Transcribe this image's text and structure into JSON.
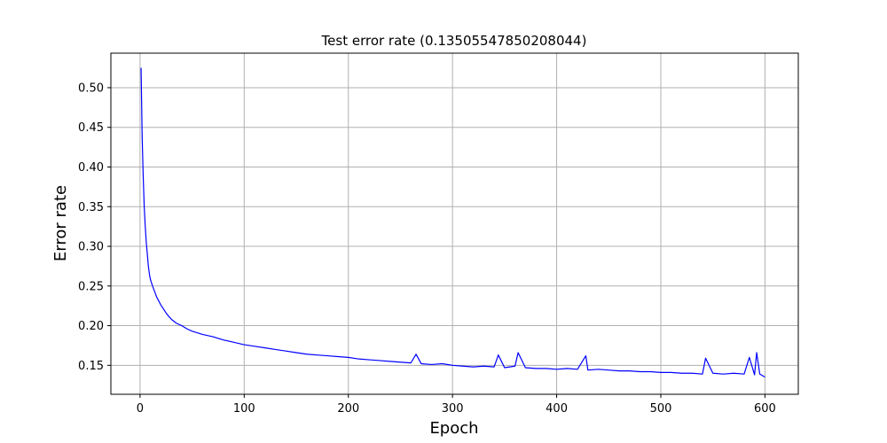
{
  "chart_data": {
    "type": "line",
    "title": "Test error rate (0.13505547850208044)",
    "xlabel": "Epoch",
    "ylabel": "Error rate",
    "xlim": [
      -28,
      632
    ],
    "ylim": [
      0.1135,
      0.5435
    ],
    "xticks": [
      0,
      100,
      200,
      300,
      400,
      500,
      600
    ],
    "yticks": [
      0.15,
      0.2,
      0.25,
      0.3,
      0.35,
      0.4,
      0.45,
      0.5
    ],
    "xtick_labels": [
      "0",
      "100",
      "200",
      "300",
      "400",
      "500",
      "600"
    ],
    "ytick_labels": [
      "0.15",
      "0.20",
      "0.25",
      "0.30",
      "0.35",
      "0.40",
      "0.45",
      "0.50"
    ],
    "grid": true,
    "series": [
      {
        "color": "#0000ff",
        "x": [
          1,
          2,
          3,
          4,
          5,
          6,
          7,
          8,
          9,
          10,
          12,
          14,
          16,
          18,
          20,
          22,
          25,
          28,
          31,
          35,
          40,
          45,
          50,
          60,
          70,
          80,
          90,
          100,
          110,
          120,
          130,
          140,
          150,
          160,
          170,
          180,
          190,
          200,
          210,
          220,
          230,
          240,
          250,
          260,
          265,
          270,
          280,
          290,
          300,
          310,
          320,
          330,
          340,
          344,
          350,
          360,
          363,
          370,
          380,
          390,
          400,
          410,
          420,
          428,
          430,
          440,
          450,
          460,
          470,
          480,
          490,
          500,
          510,
          520,
          530,
          540,
          543,
          550,
          560,
          570,
          580,
          585,
          590,
          592,
          595,
          600
        ],
        "values": [
          0.525,
          0.44,
          0.39,
          0.35,
          0.325,
          0.305,
          0.29,
          0.275,
          0.265,
          0.258,
          0.25,
          0.243,
          0.236,
          0.231,
          0.226,
          0.222,
          0.216,
          0.211,
          0.207,
          0.203,
          0.2,
          0.196,
          0.193,
          0.189,
          0.186,
          0.182,
          0.179,
          0.176,
          0.174,
          0.172,
          0.17,
          0.168,
          0.166,
          0.164,
          0.163,
          0.162,
          0.161,
          0.16,
          0.158,
          0.157,
          0.156,
          0.155,
          0.154,
          0.153,
          0.164,
          0.152,
          0.151,
          0.152,
          0.15,
          0.149,
          0.148,
          0.149,
          0.148,
          0.163,
          0.147,
          0.149,
          0.166,
          0.147,
          0.146,
          0.146,
          0.145,
          0.146,
          0.145,
          0.162,
          0.144,
          0.145,
          0.144,
          0.143,
          0.143,
          0.142,
          0.142,
          0.141,
          0.141,
          0.14,
          0.14,
          0.139,
          0.159,
          0.14,
          0.139,
          0.14,
          0.139,
          0.16,
          0.138,
          0.166,
          0.139,
          0.1351
        ]
      }
    ]
  }
}
